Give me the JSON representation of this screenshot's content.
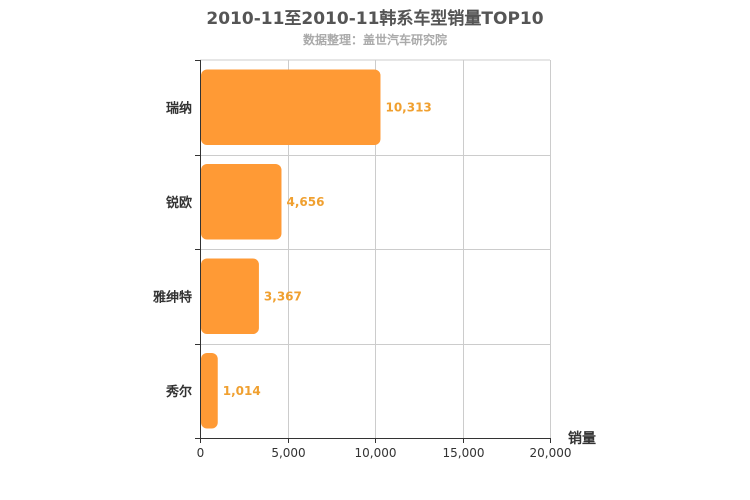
{
  "chart_data": {
    "type": "bar",
    "orientation": "horizontal",
    "title": "2010-11至2010-11韩系车型销量TOP10",
    "subtitle": "数据整理：盖世汽车研究院",
    "categories": [
      "瑞纳",
      "锐欧",
      "雅绅特",
      "秀尔"
    ],
    "values": [
      10313,
      4656,
      3367,
      1014
    ],
    "data_labels": [
      "10,313",
      "4,656",
      "3,367",
      "1,014"
    ],
    "xlabel": "销量",
    "ylabel": "",
    "xlim": [
      0,
      20000
    ],
    "x_ticks": [
      0,
      5000,
      10000,
      15000,
      20000
    ],
    "x_tick_labels": [
      "0",
      "5,000",
      "10,000",
      "15,000",
      "20,000"
    ],
    "grid": true,
    "bar_color": "#ff9a35",
    "label_color": "#f0a030"
  }
}
